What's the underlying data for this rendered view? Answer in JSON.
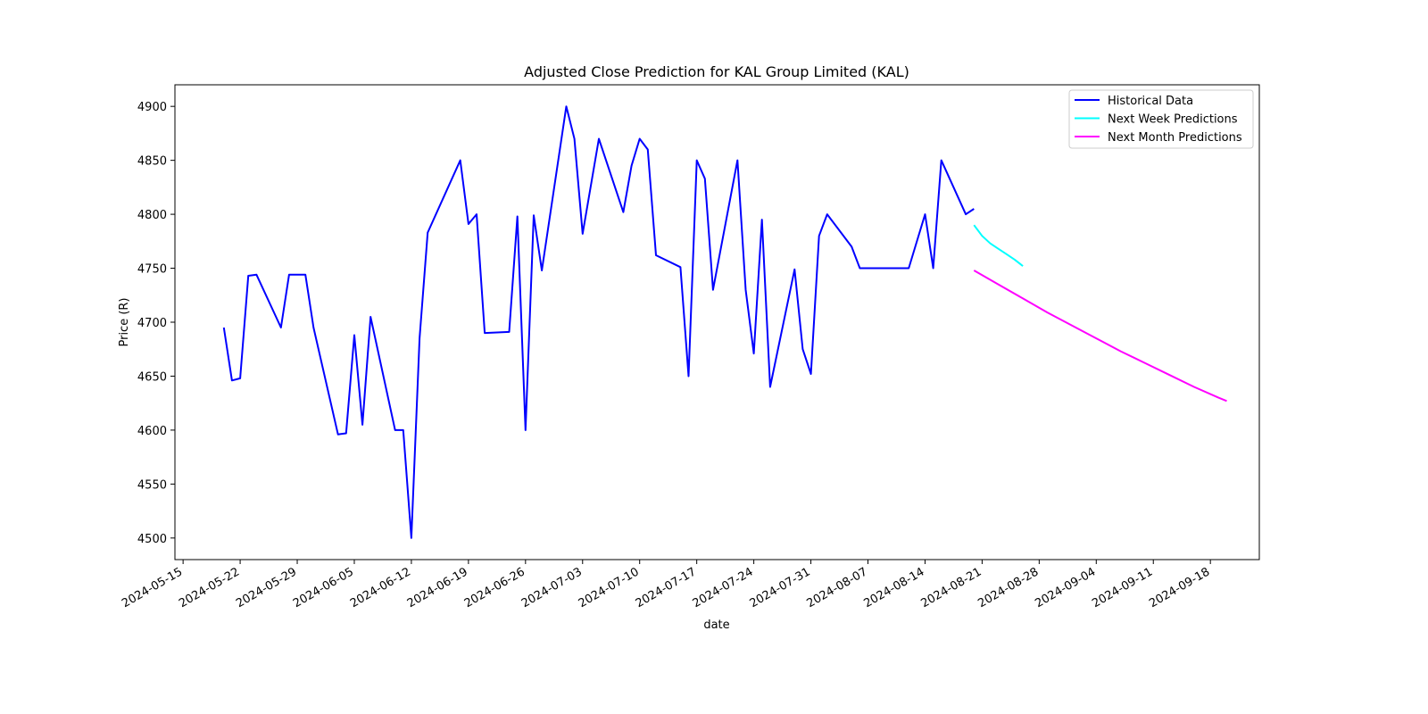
{
  "chart_data": {
    "type": "line",
    "title": "Adjusted Close Prediction for KAL Group Limited (KAL)",
    "xlabel": "date",
    "ylabel": "Price (R)",
    "xlim": [
      "2024-05-14",
      "2024-09-24"
    ],
    "ylim": [
      4480,
      4920
    ],
    "x_ticks": [
      "2024-05-15",
      "2024-05-22",
      "2024-05-29",
      "2024-06-05",
      "2024-06-12",
      "2024-06-19",
      "2024-06-26",
      "2024-07-03",
      "2024-07-10",
      "2024-07-17",
      "2024-07-24",
      "2024-07-31",
      "2024-08-07",
      "2024-08-14",
      "2024-08-21",
      "2024-08-28",
      "2024-09-04",
      "2024-09-11",
      "2024-09-18"
    ],
    "y_ticks": [
      4500,
      4550,
      4600,
      4650,
      4700,
      4750,
      4800,
      4850,
      4900
    ],
    "grid": false,
    "legend_position": "top-right",
    "series": [
      {
        "name": "Historical Data",
        "color": "#0000ff",
        "points": [
          [
            "2024-05-20",
            4695
          ],
          [
            "2024-05-21",
            4646
          ],
          [
            "2024-05-22",
            4648
          ],
          [
            "2024-05-23",
            4743
          ],
          [
            "2024-05-24",
            4744
          ],
          [
            "2024-05-27",
            4695
          ],
          [
            "2024-05-28",
            4744
          ],
          [
            "2024-05-29",
            4744
          ],
          [
            "2024-05-30",
            4744
          ],
          [
            "2024-05-31",
            4695
          ],
          [
            "2024-06-03",
            4596
          ],
          [
            "2024-06-04",
            4597
          ],
          [
            "2024-06-05",
            4688
          ],
          [
            "2024-06-06",
            4605
          ],
          [
            "2024-06-07",
            4705
          ],
          [
            "2024-06-10",
            4600
          ],
          [
            "2024-06-11",
            4600
          ],
          [
            "2024-06-12",
            4500
          ],
          [
            "2024-06-13",
            4685
          ],
          [
            "2024-06-14",
            4783
          ],
          [
            "2024-06-18",
            4850
          ],
          [
            "2024-06-19",
            4791
          ],
          [
            "2024-06-20",
            4800
          ],
          [
            "2024-06-21",
            4690
          ],
          [
            "2024-06-24",
            4691
          ],
          [
            "2024-06-25",
            4798
          ],
          [
            "2024-06-26",
            4600
          ],
          [
            "2024-06-27",
            4799
          ],
          [
            "2024-06-28",
            4748
          ],
          [
            "2024-07-01",
            4900
          ],
          [
            "2024-07-02",
            4870
          ],
          [
            "2024-07-03",
            4782
          ],
          [
            "2024-07-05",
            4870
          ],
          [
            "2024-07-08",
            4802
          ],
          [
            "2024-07-09",
            4845
          ],
          [
            "2024-07-10",
            4870
          ],
          [
            "2024-07-11",
            4860
          ],
          [
            "2024-07-12",
            4762
          ],
          [
            "2024-07-15",
            4751
          ],
          [
            "2024-07-16",
            4650
          ],
          [
            "2024-07-17",
            4850
          ],
          [
            "2024-07-18",
            4833
          ],
          [
            "2024-07-19",
            4730
          ],
          [
            "2024-07-22",
            4850
          ],
          [
            "2024-07-23",
            4730
          ],
          [
            "2024-07-24",
            4671
          ],
          [
            "2024-07-25",
            4795
          ],
          [
            "2024-07-26",
            4640
          ],
          [
            "2024-07-29",
            4749
          ],
          [
            "2024-07-30",
            4675
          ],
          [
            "2024-07-31",
            4652
          ],
          [
            "2024-08-01",
            4780
          ],
          [
            "2024-08-02",
            4800
          ],
          [
            "2024-08-05",
            4770
          ],
          [
            "2024-08-06",
            4750
          ],
          [
            "2024-08-07",
            4750
          ],
          [
            "2024-08-12",
            4750
          ],
          [
            "2024-08-14",
            4800
          ],
          [
            "2024-08-15",
            4750
          ],
          [
            "2024-08-16",
            4850
          ],
          [
            "2024-08-19",
            4800
          ],
          [
            "2024-08-20",
            4805
          ]
        ]
      },
      {
        "name": "Next Week Predictions",
        "color": "#00ffff",
        "points": [
          [
            "2024-08-20",
            4790
          ],
          [
            "2024-08-21",
            4780
          ],
          [
            "2024-08-22",
            4773
          ],
          [
            "2024-08-23",
            4768
          ],
          [
            "2024-08-24",
            4763
          ],
          [
            "2024-08-25",
            4758
          ],
          [
            "2024-08-26",
            4752
          ]
        ]
      },
      {
        "name": "Next Month Predictions",
        "color": "#ff00ff",
        "points": [
          [
            "2024-08-20",
            4748
          ],
          [
            "2024-08-23",
            4735
          ],
          [
            "2024-08-26",
            4722
          ],
          [
            "2024-08-29",
            4709
          ],
          [
            "2024-09-01",
            4697
          ],
          [
            "2024-09-04",
            4685
          ],
          [
            "2024-09-07",
            4673
          ],
          [
            "2024-09-10",
            4662
          ],
          [
            "2024-09-13",
            4651
          ],
          [
            "2024-09-16",
            4640
          ],
          [
            "2024-09-19",
            4630
          ],
          [
            "2024-09-20",
            4627
          ]
        ]
      }
    ]
  }
}
